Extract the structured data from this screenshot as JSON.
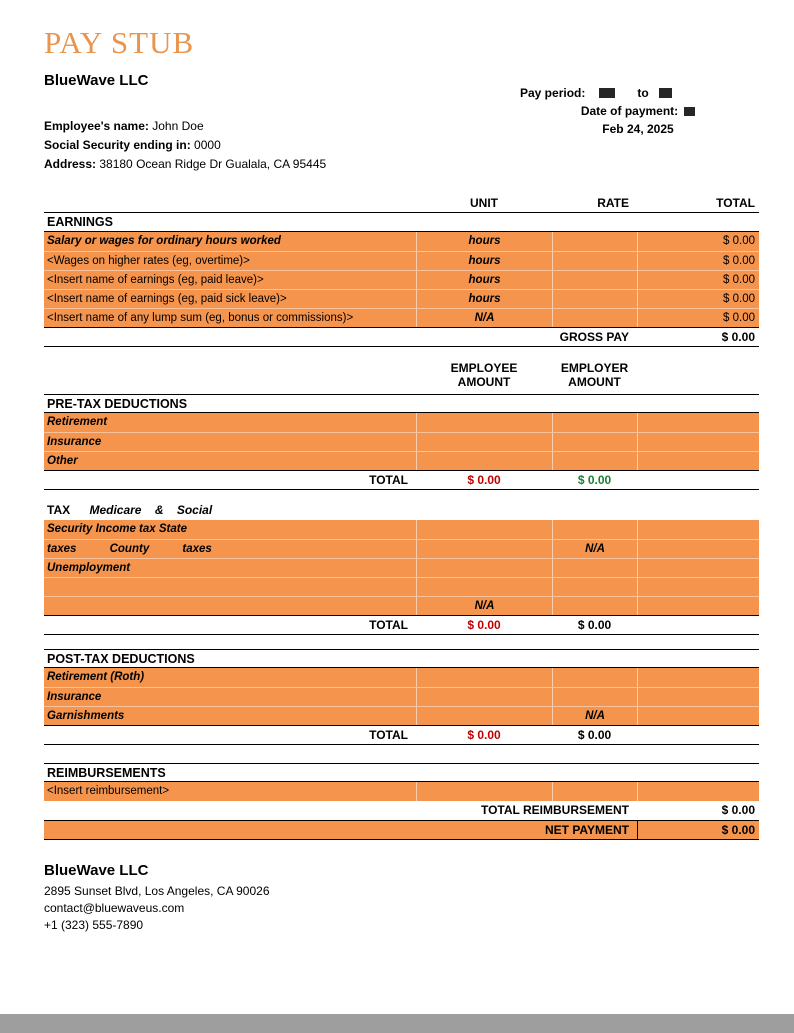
{
  "colors": {
    "orange": "#F5944D",
    "title_orange": "#E9954E",
    "total_red": "#C00000",
    "total_green": "#1E7E34",
    "page_edge_gray": "#9E9E9E"
  },
  "header": {
    "title": "PAY STUB",
    "company": "BlueWave LLC",
    "pay_period_label": "Pay period:",
    "pay_period_to": "to",
    "date_of_payment_label": "Date of payment:",
    "date_of_payment": "Feb 24, 2025"
  },
  "employee": {
    "name_label": "Employee's name:",
    "name": "John Doe",
    "ssn_label": "Social Security ending in:",
    "ssn": "0000",
    "address_label": "Address:",
    "address": "38180 Ocean Ridge Dr Gualala, CA 95445"
  },
  "earnings": {
    "columns": {
      "unit": "UNIT",
      "rate": "RATE",
      "total": "TOTAL"
    },
    "section_title": "EARNINGS",
    "rows": [
      {
        "label": "Salary or wages for ordinary hours worked",
        "unit": "hours",
        "rate": "",
        "total": "$ 0.00"
      },
      {
        "label": "<Wages on higher rates (eg, overtime)>",
        "unit": "hours",
        "rate": "",
        "total": "$ 0.00"
      },
      {
        "label": "<Insert name of earnings (eg, paid leave)>",
        "unit": "hours",
        "rate": "",
        "total": "$ 0.00"
      },
      {
        "label": "<Insert name of earnings (eg, paid sick leave)>",
        "unit": "hours",
        "rate": "",
        "total": "$ 0.00"
      },
      {
        "label": "<Insert name of any lump sum (eg, bonus or commissions)>",
        "unit": "N/A",
        "rate": "",
        "total": "$ 0.00"
      }
    ],
    "gross_pay_label": "GROSS PAY",
    "gross_pay_total": "$ 0.00"
  },
  "amount_columns": {
    "employee_line1": "EMPLOYEE",
    "employee_line2": "AMOUNT",
    "employer_line1": "EMPLOYER",
    "employer_line2": "AMOUNT"
  },
  "pretax": {
    "section_title": "PRE-TAX DEDUCTIONS",
    "rows": [
      {
        "label": "Retirement",
        "employee": "",
        "employer": ""
      },
      {
        "label": "Insurance",
        "employee": "",
        "employer": ""
      },
      {
        "label": "Other",
        "employee": "",
        "employer": ""
      }
    ],
    "total_label": "TOTAL",
    "total_employee": "$ 0.00",
    "total_employer": "$ 0.00"
  },
  "tax": {
    "heading_prefix": "TAX",
    "heading_rest": "Medicare & Social",
    "rows": [
      {
        "label": "Security Income tax State",
        "employee": "",
        "employer": ""
      },
      {
        "label": "taxes County taxes",
        "employee": "",
        "employer": "N/A"
      },
      {
        "label": "Unemployment",
        "employee": "",
        "employer": ""
      },
      {
        "label": "",
        "employee": "",
        "employer": ""
      },
      {
        "label": "",
        "employee": "N/A",
        "employer": ""
      }
    ],
    "total_label": "TOTAL",
    "total_employee": "$ 0.00",
    "total_employer": "$ 0.00"
  },
  "posttax": {
    "section_title": "POST-TAX DEDUCTIONS",
    "rows": [
      {
        "label": "Retirement (Roth)",
        "employee": "",
        "employer": ""
      },
      {
        "label": "Insurance",
        "employee": "",
        "employer": ""
      },
      {
        "label": "Garnishments",
        "employee": "",
        "employer": "N/A"
      }
    ],
    "total_label": "TOTAL",
    "total_employee": "$ 0.00",
    "total_employer": "$ 0.00"
  },
  "reimbursements": {
    "section_title": "REIMBURSEMENTS",
    "rows": [
      {
        "label": "<Insert reimbursement>"
      }
    ],
    "total_label": "TOTAL REIMBURSEMENT",
    "total": "$ 0.00",
    "net_label": "NET PAYMENT",
    "net_total": "$ 0.00"
  },
  "footer": {
    "company": "BlueWave LLC",
    "address": "2895 Sunset Blvd, Los Angeles, CA 90026",
    "email": "contact@bluewaveus.com",
    "phone": "+1 (323) 555-7890"
  }
}
